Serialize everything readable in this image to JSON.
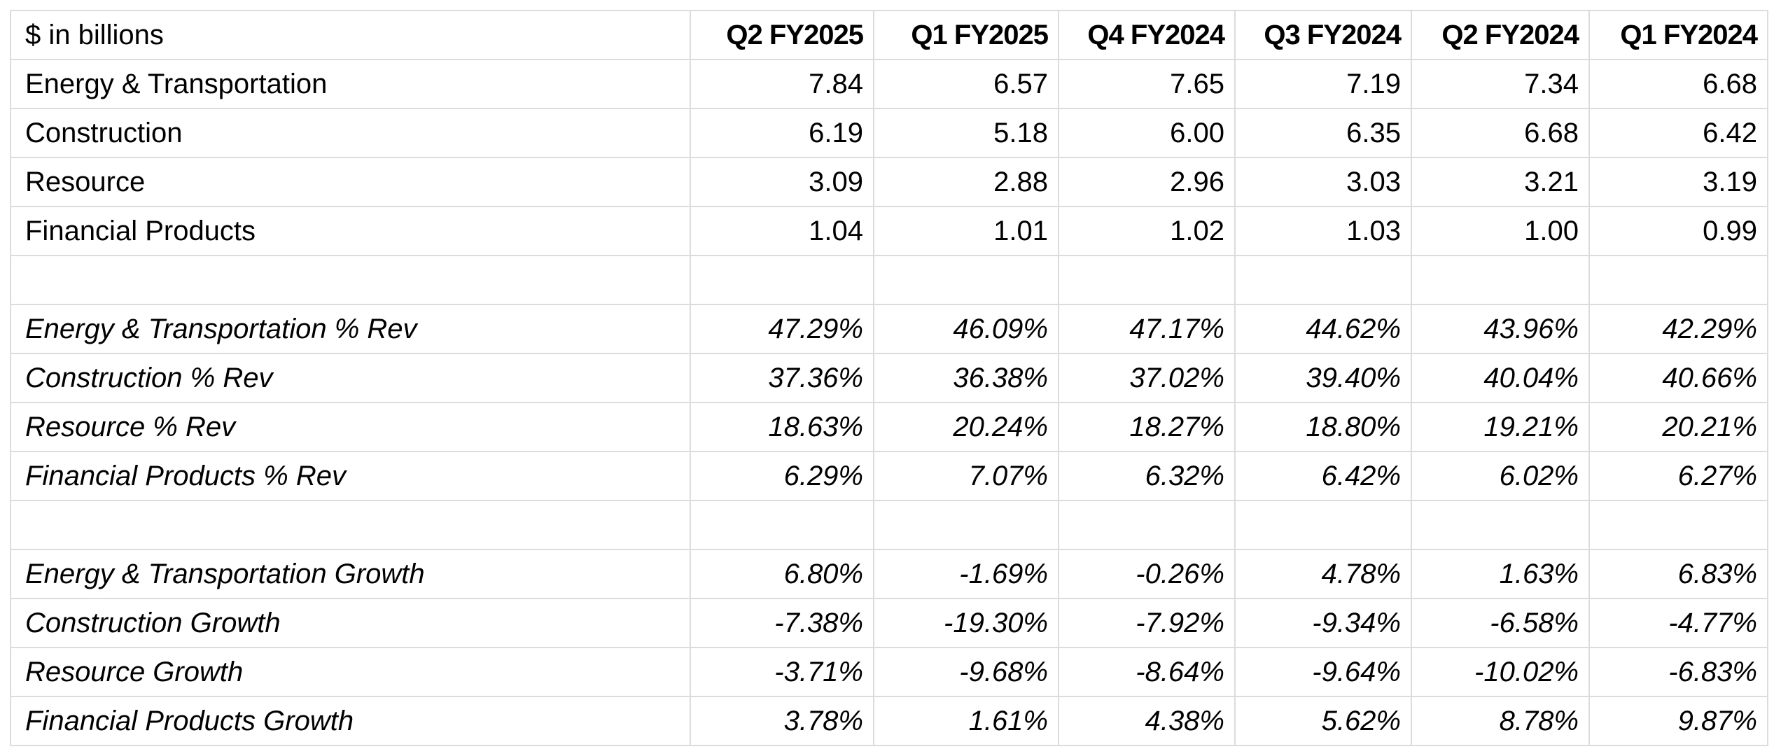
{
  "table": {
    "header": {
      "label": "$ in billions",
      "columns": [
        "Q2 FY2025",
        "Q1 FY2025",
        "Q4 FY2024",
        "Q3 FY2024",
        "Q2 FY2024",
        "Q1 FY2024"
      ]
    },
    "revenue_rows": [
      {
        "label": "Energy & Transportation",
        "values": [
          "7.84",
          "6.57",
          "7.65",
          "7.19",
          "7.34",
          "6.68"
        ]
      },
      {
        "label": "Construction",
        "values": [
          "6.19",
          "5.18",
          "6.00",
          "6.35",
          "6.68",
          "6.42"
        ]
      },
      {
        "label": "Resource",
        "values": [
          "3.09",
          "2.88",
          "2.96",
          "3.03",
          "3.21",
          "3.19"
        ]
      },
      {
        "label": "Financial Products",
        "values": [
          "1.04",
          "1.01",
          "1.02",
          "1.03",
          "1.00",
          "0.99"
        ]
      }
    ],
    "pct_rev_rows": [
      {
        "label": "Energy & Transportation % Rev",
        "values": [
          "47.29%",
          "46.09%",
          "47.17%",
          "44.62%",
          "43.96%",
          "42.29%"
        ]
      },
      {
        "label": "Construction % Rev",
        "values": [
          "37.36%",
          "36.38%",
          "37.02%",
          "39.40%",
          "40.04%",
          "40.66%"
        ]
      },
      {
        "label": "Resource % Rev",
        "values": [
          "18.63%",
          "20.24%",
          "18.27%",
          "18.80%",
          "19.21%",
          "20.21%"
        ]
      },
      {
        "label": "Financial Products % Rev",
        "values": [
          "6.29%",
          "7.07%",
          "6.32%",
          "6.42%",
          "6.02%",
          "6.27%"
        ]
      }
    ],
    "growth_rows": [
      {
        "label": "Energy & Transportation Growth",
        "values": [
          "6.80%",
          "-1.69%",
          "-0.26%",
          "4.78%",
          "1.63%",
          "6.83%"
        ]
      },
      {
        "label": "Construction Growth",
        "values": [
          "-7.38%",
          "-19.30%",
          "-7.92%",
          "-9.34%",
          "-6.58%",
          "-4.77%"
        ]
      },
      {
        "label": "Resource Growth",
        "values": [
          "-3.71%",
          "-9.68%",
          "-8.64%",
          "-9.64%",
          "-10.02%",
          "-6.83%"
        ]
      },
      {
        "label": "Financial Products Growth",
        "values": [
          "3.78%",
          "1.61%",
          "4.38%",
          "5.62%",
          "8.78%",
          "9.87%"
        ]
      }
    ]
  }
}
